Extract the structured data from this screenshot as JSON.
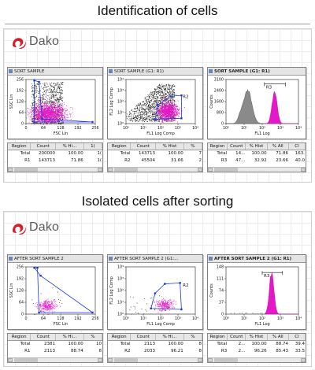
{
  "sections": [
    {
      "heading": "Identification of cells",
      "logo": {
        "text": "Dako",
        "mark_color": "#d31f27"
      },
      "windows": [
        {
          "title": "SORT SAMPLE",
          "kind": "dot",
          "xlabel": "FSC Lin",
          "ylabel": "SSC Lin",
          "xticks": [
            "0",
            "64",
            "128",
            "192",
            "256"
          ],
          "yticks": [
            "0",
            "64",
            "128",
            "192",
            "256"
          ],
          "gate_label": "R1",
          "table": {
            "columns": [
              "Region",
              "Count",
              "% Hi...",
              "1("
            ],
            "rows": [
              [
                "Total",
                "200000",
                "100.00",
                "1("
              ],
              [
                "R1",
                "143713",
                "71.86",
                "1("
              ]
            ]
          }
        },
        {
          "title": "SORT SAMPLE (G1: R1)",
          "kind": "log",
          "xlabel": "FL1 Log Comp",
          "ylabel": "FL2 Log Comp",
          "xticks": [
            "10⁰",
            "10¹",
            "10²",
            "10³",
            "10⁴"
          ],
          "yticks": [
            "10⁰",
            "10¹",
            "10²",
            "10³",
            "10⁴"
          ],
          "gate_label": "R2",
          "table": {
            "columns": [
              "Region",
              "Count",
              "% Hist",
              "%"
            ],
            "rows": [
              [
                "Total",
                "143713",
                "100.00",
                "7"
              ],
              [
                "R2",
                "45504",
                "31.66",
                "2"
              ]
            ]
          }
        },
        {
          "title": "SORT SAMPLE (G1: R1)",
          "kind": "hist",
          "xlabel": "FL1 Log",
          "ylabel": "Counts",
          "xticks": [
            "10⁰",
            "10¹",
            "10²",
            "10³",
            "10⁴"
          ],
          "yticks": [
            "3100",
            "2400",
            "1600",
            "800",
            "0"
          ],
          "gate_label": "R3",
          "table": {
            "columns": [
              "Region",
              "Count",
              "% Hist",
              "% All",
              "Cl"
            ],
            "rows": [
              [
                "Total",
                "14...",
                "100.00",
                "71.86",
                "163."
              ],
              [
                "R3",
                "47...",
                "32.92",
                "23.66",
                "40.0"
              ]
            ]
          }
        }
      ]
    },
    {
      "heading": "Isolated cells after sorting",
      "logo": {
        "text": "Dako",
        "mark_color": "#d31f27"
      },
      "windows": [
        {
          "title": "AFTER SORT SAMPLE 2",
          "kind": "dot",
          "xlabel": "FSC Lin",
          "ylabel": "SSC Lin",
          "xticks": [
            "0",
            "64",
            "128",
            "192",
            "256"
          ],
          "yticks": [
            "0",
            "64",
            "128",
            "192",
            "256"
          ],
          "gate_label": "R1",
          "table": {
            "columns": [
              "Region",
              "Count",
              "% Hi...",
              "%"
            ],
            "rows": [
              [
                "Total",
                "2381",
                "100.00",
                "10"
              ],
              [
                "R1",
                "2113",
                "88.74",
                "8"
              ]
            ]
          }
        },
        {
          "title": "AFTER SORT SAMPLE 2 (G1:...",
          "kind": "log",
          "xlabel": "FL1 Log Comp",
          "ylabel": "FL2 Log Comp",
          "xticks": [
            "10⁰",
            "10¹",
            "10²",
            "10³",
            "10⁴"
          ],
          "yticks": [
            "10⁰",
            "10¹",
            "10²",
            "10³",
            "10⁴"
          ],
          "gate_label": "R2",
          "table": {
            "columns": [
              "Region",
              "Count",
              "% Hi...",
              "%"
            ],
            "rows": [
              [
                "Total",
                "2113",
                "100.00",
                "8"
              ],
              [
                "R2",
                "2033",
                "96.21",
                "8"
              ]
            ]
          }
        },
        {
          "title": "AFTER SORT SAMPLE 2 (G1: R1)",
          "kind": "hist",
          "xlabel": "FL1 Log",
          "ylabel": "Counts",
          "xticks": [
            "10⁰",
            "10¹",
            "10²",
            "10³",
            "10⁴"
          ],
          "yticks": [
            "148",
            "111",
            "74",
            "37",
            "0"
          ],
          "gate_label": "R3",
          "table": {
            "columns": [
              "Region",
              "Count",
              "% Hist",
              "% All",
              "Cl"
            ],
            "rows": [
              [
                "Total",
                "2...",
                "100.00",
                "88.74",
                "39.4"
              ],
              [
                "R3",
                "2...",
                "96.26",
                "85.43",
                "33.5"
              ]
            ]
          }
        }
      ]
    }
  ],
  "colors": {
    "gate": "#1d38d8",
    "magenta": "#e617c8",
    "histogram_gray": "#8a8a8a",
    "dot_black": "#111111"
  }
}
